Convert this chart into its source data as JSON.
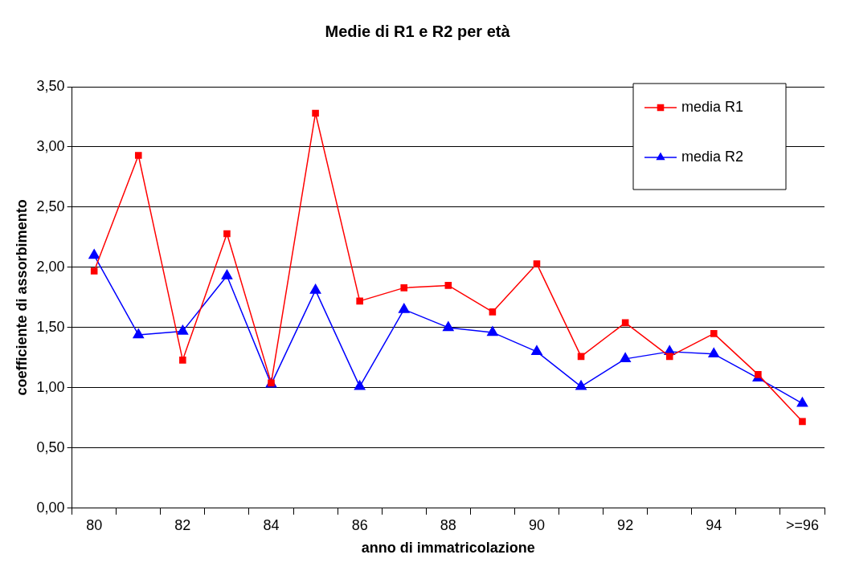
{
  "chart_data": {
    "type": "line",
    "title": "Medie di R1 e R2 per età",
    "xlabel": "anno di immatricolazione",
    "ylabel": "coefficiente di assorbimento",
    "categories": [
      "80",
      null,
      "82",
      null,
      "84",
      null,
      "86",
      null,
      "88",
      null,
      "90",
      null,
      "92",
      null,
      "94",
      null,
      ">=96"
    ],
    "series": [
      {
        "name": "media R1",
        "color": "#ff0000",
        "marker": "square",
        "values": [
          1.97,
          2.93,
          1.23,
          2.28,
          1.04,
          3.28,
          1.72,
          1.83,
          1.85,
          1.63,
          2.03,
          1.26,
          1.54,
          1.26,
          1.45,
          1.11,
          0.72
        ]
      },
      {
        "name": "media R2",
        "color": "#0000ff",
        "marker": "triangle",
        "values": [
          2.1,
          1.44,
          1.47,
          1.93,
          1.03,
          1.81,
          1.01,
          1.65,
          1.5,
          1.46,
          1.3,
          1.01,
          1.24,
          1.3,
          1.28,
          1.08,
          0.87
        ]
      }
    ],
    "ylim": [
      0,
      3.5
    ],
    "yticks": [
      {
        "value": 0,
        "label": "0,00"
      },
      {
        "value": 0.5,
        "label": "0,50"
      },
      {
        "value": 1,
        "label": "1,00"
      },
      {
        "value": 1.5,
        "label": "1,50"
      },
      {
        "value": 2,
        "label": "2,00"
      },
      {
        "value": 2.5,
        "label": "2,50"
      },
      {
        "value": 3,
        "label": "3,00"
      },
      {
        "value": 3.5,
        "label": "3,50"
      }
    ],
    "grid": "y",
    "legend": "top right",
    "line_style": "solid"
  }
}
